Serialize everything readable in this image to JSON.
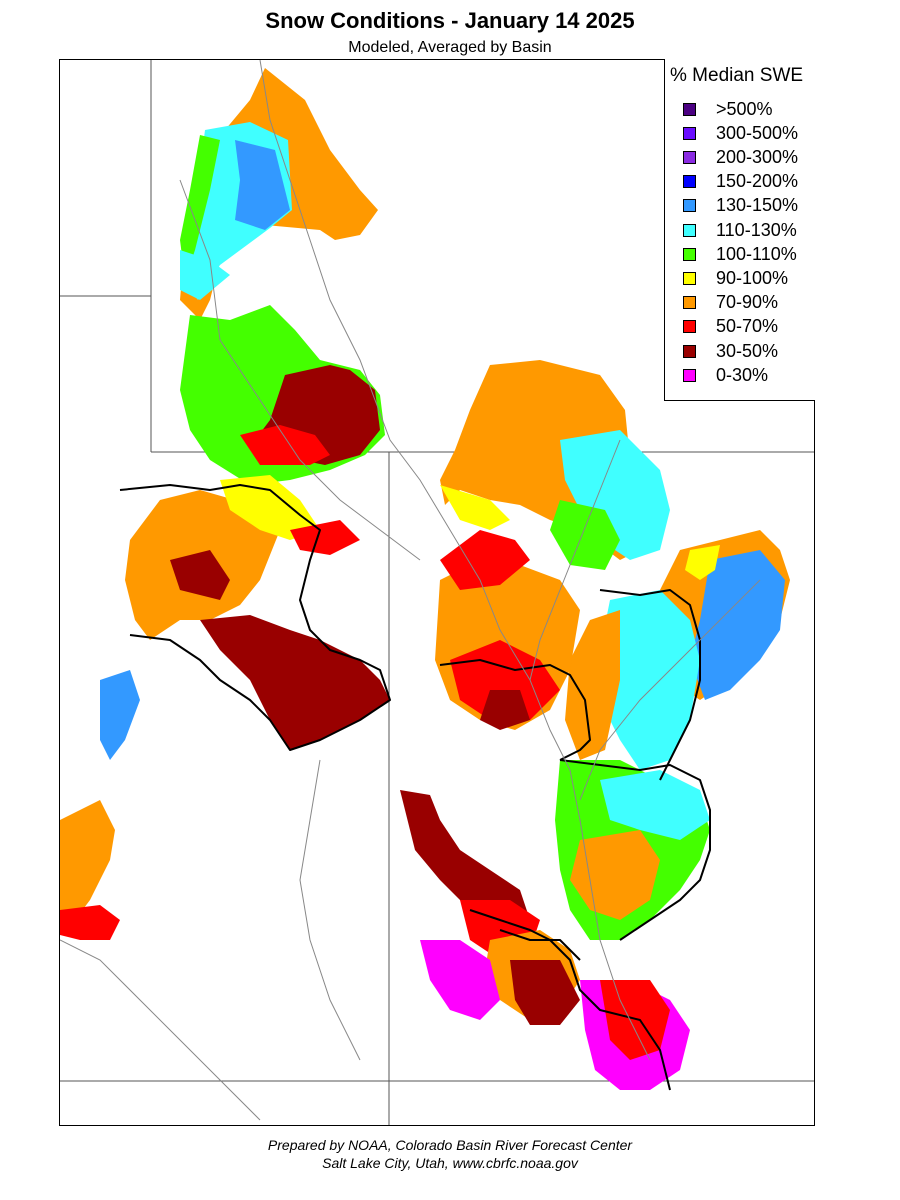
{
  "header": {
    "title": "Snow Conditions - January 14 2025",
    "subtitle": "Modeled, Averaged by Basin"
  },
  "legend": {
    "title": "% Median SWE",
    "items": [
      {
        "label": ">500%",
        "color": "#4b0082"
      },
      {
        "label": "300-500%",
        "color": "#6a0dff"
      },
      {
        "label": "200-300%",
        "color": "#8a2be2"
      },
      {
        "label": "150-200%",
        "color": "#0000ff"
      },
      {
        "label": "130-150%",
        "color": "#3399ff"
      },
      {
        "label": "110-130%",
        "color": "#40ffff"
      },
      {
        "label": "100-110%",
        "color": "#44ff00"
      },
      {
        "label": "90-100%",
        "color": "#ffff00"
      },
      {
        "label": "70-90%",
        "color": "#ff9900"
      },
      {
        "label": "50-70%",
        "color": "#ff0000"
      },
      {
        "label": "30-50%",
        "color": "#990000"
      },
      {
        "label": "0-30%",
        "color": "#ff00ff"
      }
    ]
  },
  "footer": {
    "line1": "Prepared by NOAA, Colorado Basin River Forecast Center",
    "line2": "Salt Lake City, Utah, www.cbrfc.noaa.gov"
  }
}
